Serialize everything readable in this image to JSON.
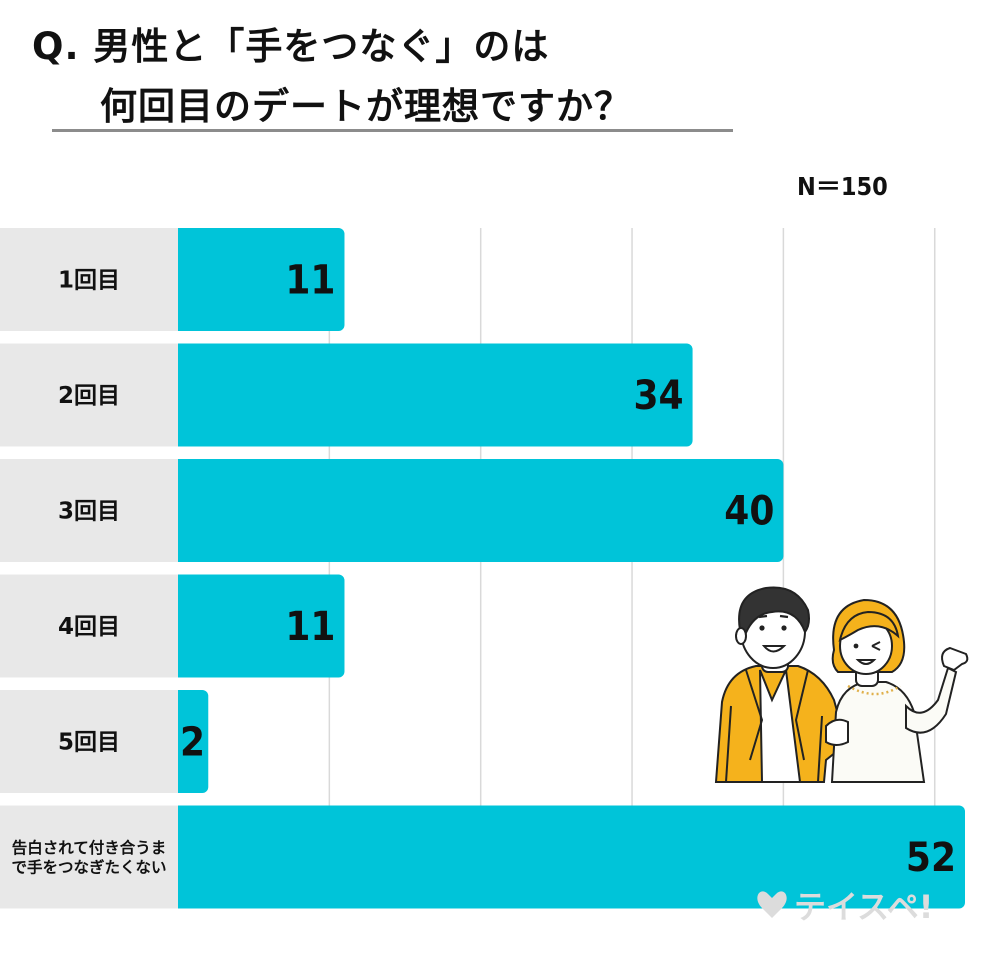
{
  "title": {
    "line1": "Q. 男性と「手をつなぐ」のは",
    "line2": "何回目のデートが理想ですか？"
  },
  "sample_size": "N＝150",
  "chart_data": {
    "type": "bar",
    "orientation": "horizontal",
    "title": "Q. 男性と「手をつなぐ」のは何回目のデートが理想ですか？",
    "categories": [
      "1回目",
      "2回目",
      "3回目",
      "4回目",
      "5回目",
      "告白されて付き合うまで手をつなぎたくない"
    ],
    "category_lines": [
      [
        "1回目"
      ],
      [
        "2回目"
      ],
      [
        "3回目"
      ],
      [
        "4回目"
      ],
      [
        "5回目"
      ],
      [
        "告白されて付き合うま",
        "で手をつなぎたくない"
      ]
    ],
    "values": [
      11,
      34,
      40,
      11,
      2,
      52
    ],
    "xlim": [
      0,
      52
    ],
    "grid": true,
    "bar_color": "#00c4d9",
    "label_bg_color": "#e8e8e8",
    "gridline_color": "#d9d9d9"
  },
  "illustration": "couple-illustration",
  "watermark": "テイスペ!"
}
